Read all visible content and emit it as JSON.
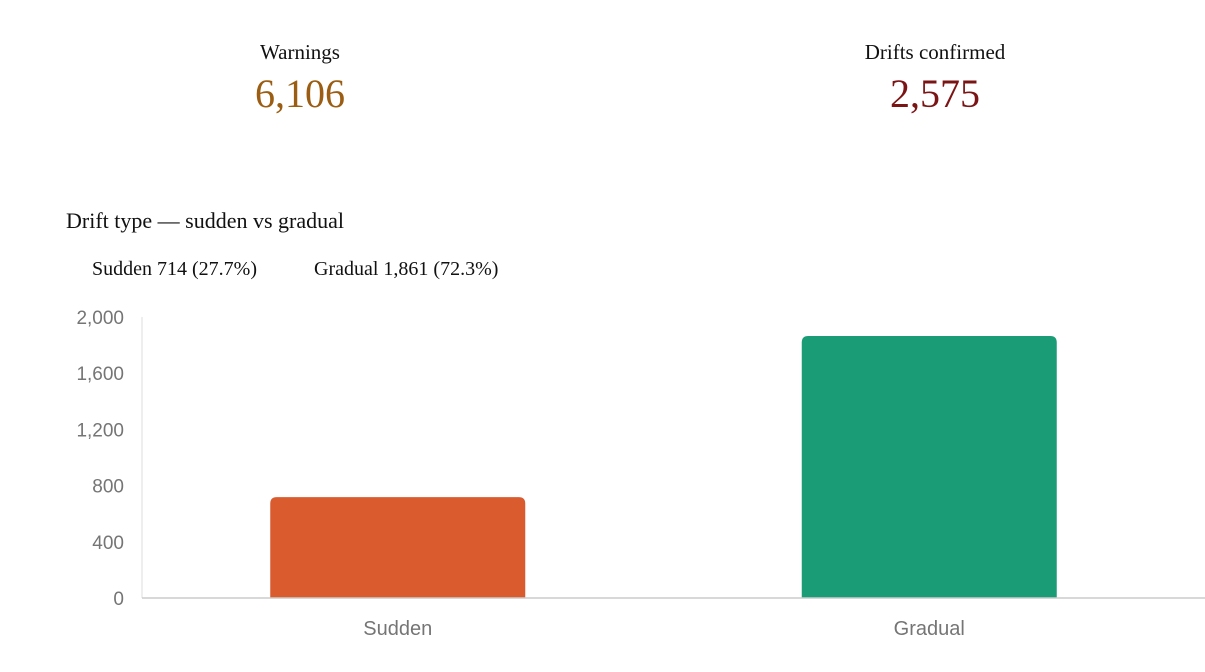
{
  "kpis": {
    "warnings": {
      "label": "Warnings",
      "value": "6,106",
      "color": "#9b5d12"
    },
    "drifts_confirmed": {
      "label": "Drifts confirmed",
      "value": "2,575",
      "color": "#7b1414"
    }
  },
  "section": {
    "title": "Drift type — sudden vs gradual"
  },
  "legend": [
    {
      "text": "Sudden 714 (27.7%)"
    },
    {
      "text": "Gradual 1,861 (72.3%)"
    }
  ],
  "chart_data": {
    "type": "bar",
    "title": "Drift type — sudden vs gradual",
    "categories": [
      "Sudden",
      "Gradual"
    ],
    "values": [
      714,
      1861
    ],
    "colors": [
      "#d95b2e",
      "#1a9c76"
    ],
    "ylim": [
      0,
      2000
    ],
    "yticks": [
      0,
      400,
      800,
      1200,
      1600,
      2000
    ],
    "ytick_labels": [
      "0",
      "400",
      "800",
      "1,200",
      "1,600",
      "2,000"
    ],
    "xlabel": "",
    "ylabel": "",
    "grid": false
  }
}
